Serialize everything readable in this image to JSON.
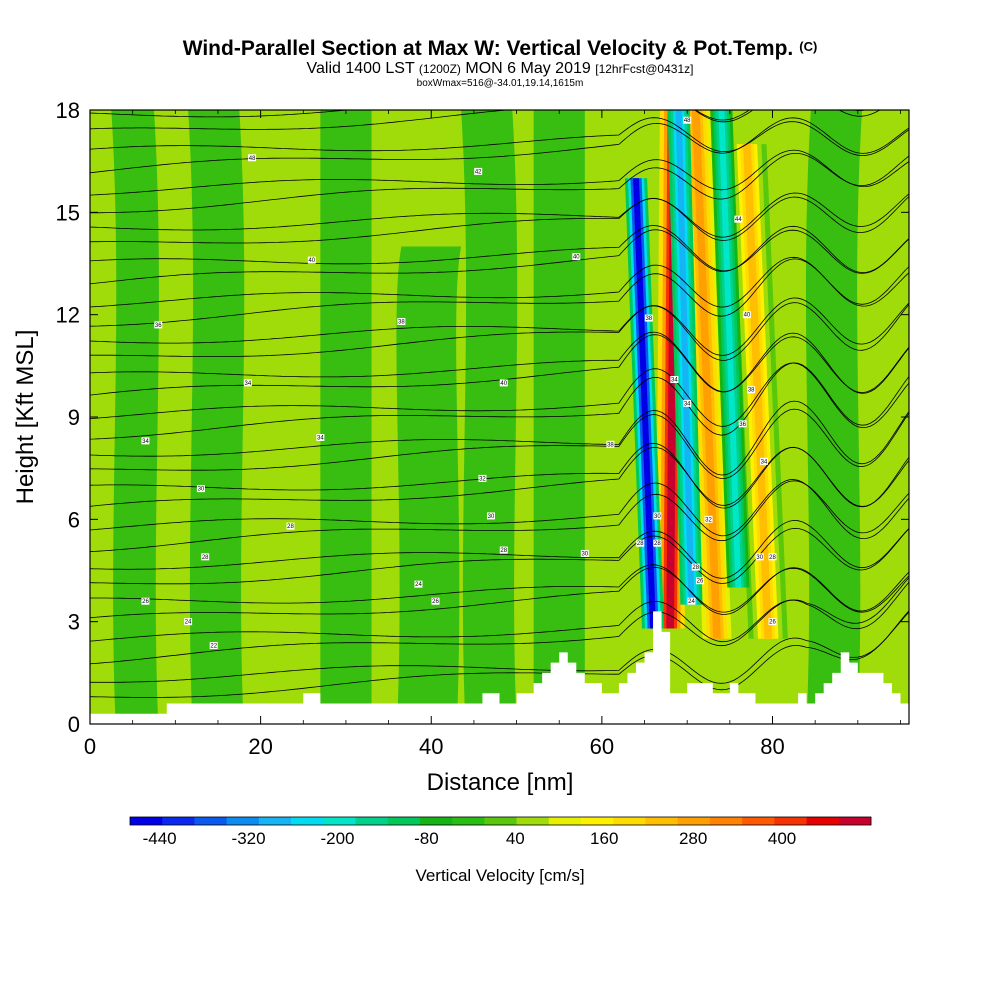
{
  "header": {
    "title": "Wind-Parallel Section at Max W: Vertical Velocity & Pot.Temp.",
    "copyright": "(C)",
    "valid_prefix": "Valid 1400 LST",
    "valid_utc": "(1200Z)",
    "valid_date": "MON 6 May 2019",
    "forecast": "[12hrFcst@0431z]",
    "box_info": "boxWmax=516@-34.01,19.14,1615m"
  },
  "chart_data": {
    "type": "heatmap",
    "xlabel": "Distance [nm]",
    "ylabel": "Height [Kft MSL]",
    "xlim": [
      0,
      96
    ],
    "ylim": [
      0,
      18
    ],
    "xticks": [
      0,
      20,
      40,
      60,
      80
    ],
    "yticks": [
      0,
      3,
      6,
      9,
      12,
      15,
      18
    ],
    "colorbar": {
      "label": "Vertical Velocity [cm/s]",
      "range": [
        -480,
        520
      ],
      "tick_values": [
        -440,
        -320,
        -200,
        -80,
        40,
        160,
        280,
        400
      ],
      "tick_labels": [
        "-440",
        "-320",
        "-200",
        "-80",
        "40",
        "160",
        "280",
        "400"
      ],
      "colors": [
        "#0000e6",
        "#0a28f0",
        "#0a5af0",
        "#0a8cf0",
        "#14b4f5",
        "#00dcf0",
        "#00e6c8",
        "#00d28c",
        "#00c85a",
        "#14b414",
        "#28be14",
        "#5ac80a",
        "#a0dc0a",
        "#e6f000",
        "#fff000",
        "#ffdc00",
        "#ffbe00",
        "#ffa000",
        "#ff8200",
        "#ff5a00",
        "#f53200",
        "#e60000",
        "#c8002d"
      ]
    },
    "terrain_kft": [
      [
        0,
        0.3
      ],
      [
        9,
        0.3
      ],
      [
        9,
        0.6
      ],
      [
        25,
        0.6
      ],
      [
        25,
        0.9
      ],
      [
        27,
        0.9
      ],
      [
        27,
        0.6
      ],
      [
        46,
        0.6
      ],
      [
        46,
        0.9
      ],
      [
        48,
        0.9
      ],
      [
        48,
        0.6
      ],
      [
        50,
        0.6
      ],
      [
        50,
        0.9
      ],
      [
        52,
        0.9
      ],
      [
        52,
        1.2
      ],
      [
        53,
        1.2
      ],
      [
        53,
        1.5
      ],
      [
        54,
        1.5
      ],
      [
        54,
        1.8
      ],
      [
        55,
        1.8
      ],
      [
        55,
        2.1
      ],
      [
        56,
        2.1
      ],
      [
        56,
        1.8
      ],
      [
        57,
        1.8
      ],
      [
        57,
        1.5
      ],
      [
        58,
        1.5
      ],
      [
        58,
        1.2
      ],
      [
        60,
        1.2
      ],
      [
        60,
        0.9
      ],
      [
        62,
        0.9
      ],
      [
        62,
        1.2
      ],
      [
        63,
        1.2
      ],
      [
        63,
        1.5
      ],
      [
        64,
        1.5
      ],
      [
        64,
        1.8
      ],
      [
        65,
        1.8
      ],
      [
        65,
        2.1
      ],
      [
        66,
        2.1
      ],
      [
        66,
        3.3
      ],
      [
        67,
        3.3
      ],
      [
        67,
        2.7
      ],
      [
        68,
        2.7
      ],
      [
        68,
        0.9
      ],
      [
        70,
        0.9
      ],
      [
        70,
        1.2
      ],
      [
        73,
        1.2
      ],
      [
        73,
        0.9
      ],
      [
        75,
        0.9
      ],
      [
        75,
        1.2
      ],
      [
        76,
        1.2
      ],
      [
        76,
        0.9
      ],
      [
        78,
        0.9
      ],
      [
        78,
        0.6
      ],
      [
        83,
        0.6
      ],
      [
        83,
        0.9
      ],
      [
        84,
        0.9
      ],
      [
        84,
        0.6
      ],
      [
        85,
        0.6
      ],
      [
        85,
        0.9
      ],
      [
        86,
        0.9
      ],
      [
        86,
        1.2
      ],
      [
        87,
        1.2
      ],
      [
        87,
        1.5
      ],
      [
        88,
        1.5
      ],
      [
        88,
        2.1
      ],
      [
        89,
        2.1
      ],
      [
        89,
        1.8
      ],
      [
        90,
        1.8
      ],
      [
        90,
        1.5
      ],
      [
        93,
        1.5
      ],
      [
        93,
        1.2
      ],
      [
        94,
        1.2
      ],
      [
        94,
        0.9
      ],
      [
        95,
        0.9
      ],
      [
        95,
        0.6
      ],
      [
        96,
        0.6
      ]
    ],
    "updrafts": [
      {
        "x_base": 68,
        "x_top": 68.5,
        "y_from": 2.8,
        "y_to": 18,
        "w_max": 500
      },
      {
        "x_base": 73.5,
        "x_top": 71,
        "y_from": 2.5,
        "y_to": 18,
        "w_max": 300
      },
      {
        "x_base": 79.5,
        "x_top": 77,
        "y_from": 2.5,
        "y_to": 17,
        "w_max": 240
      }
    ],
    "downdrafts": [
      {
        "x_base": 66,
        "x_top": 64,
        "y_from": 2.8,
        "y_to": 16,
        "w_min": -440
      },
      {
        "x_base": 70.5,
        "x_top": 69,
        "y_from": 3.5,
        "y_to": 18,
        "w_min": -300
      },
      {
        "x_base": 76,
        "x_top": 74,
        "y_from": 4,
        "y_to": 18,
        "w_min": -180
      }
    ],
    "isentrope_labels": [
      {
        "x": 8,
        "y": 11.7,
        "label": "36"
      },
      {
        "x": 19,
        "y": 16.6,
        "label": "48"
      },
      {
        "x": 36.5,
        "y": 11.8,
        "label": "38"
      },
      {
        "x": 45.5,
        "y": 16.2,
        "label": "42"
      },
      {
        "x": 26,
        "y": 13.6,
        "label": "40"
      },
      {
        "x": 18.5,
        "y": 10.0,
        "label": "34"
      },
      {
        "x": 6.5,
        "y": 8.3,
        "label": "34"
      },
      {
        "x": 27,
        "y": 8.4,
        "label": "34"
      },
      {
        "x": 13,
        "y": 6.9,
        "label": "30"
      },
      {
        "x": 23.5,
        "y": 5.8,
        "label": "28"
      },
      {
        "x": 13.5,
        "y": 4.9,
        "label": "28"
      },
      {
        "x": 6.5,
        "y": 3.6,
        "label": "26"
      },
      {
        "x": 11.5,
        "y": 3.0,
        "label": "24"
      },
      {
        "x": 14.5,
        "y": 2.3,
        "label": "22"
      },
      {
        "x": 38.5,
        "y": 4.1,
        "label": "24"
      },
      {
        "x": 40.5,
        "y": 3.6,
        "label": "26"
      },
      {
        "x": 48.5,
        "y": 10.0,
        "label": "40"
      },
      {
        "x": 46,
        "y": 7.2,
        "label": "32"
      },
      {
        "x": 47,
        "y": 6.1,
        "label": "30"
      },
      {
        "x": 48.5,
        "y": 5.1,
        "label": "28"
      },
      {
        "x": 57,
        "y": 13.7,
        "label": "40"
      },
      {
        "x": 61,
        "y": 8.2,
        "label": "38"
      },
      {
        "x": 58,
        "y": 5.0,
        "label": "30"
      },
      {
        "x": 64.5,
        "y": 5.3,
        "label": "28"
      },
      {
        "x": 65.5,
        "y": 11.9,
        "label": "38"
      },
      {
        "x": 68.5,
        "y": 10.1,
        "label": "34"
      },
      {
        "x": 70,
        "y": 9.4,
        "label": "34"
      },
      {
        "x": 66.5,
        "y": 6.1,
        "label": "30"
      },
      {
        "x": 66.5,
        "y": 5.3,
        "label": "28"
      },
      {
        "x": 72.5,
        "y": 6.0,
        "label": "32"
      },
      {
        "x": 71,
        "y": 4.6,
        "label": "28"
      },
      {
        "x": 71.5,
        "y": 4.2,
        "label": "26"
      },
      {
        "x": 70.5,
        "y": 3.6,
        "label": "24"
      },
      {
        "x": 70,
        "y": 17.7,
        "label": "48"
      },
      {
        "x": 76,
        "y": 14.8,
        "label": "44"
      },
      {
        "x": 77,
        "y": 12.0,
        "label": "40"
      },
      {
        "x": 77.5,
        "y": 9.8,
        "label": "38"
      },
      {
        "x": 76.5,
        "y": 8.8,
        "label": "36"
      },
      {
        "x": 79,
        "y": 7.7,
        "label": "34"
      },
      {
        "x": 78.5,
        "y": 4.9,
        "label": "30"
      },
      {
        "x": 80,
        "y": 4.9,
        "label": "28"
      },
      {
        "x": 80,
        "y": 3.0,
        "label": "26"
      }
    ]
  }
}
